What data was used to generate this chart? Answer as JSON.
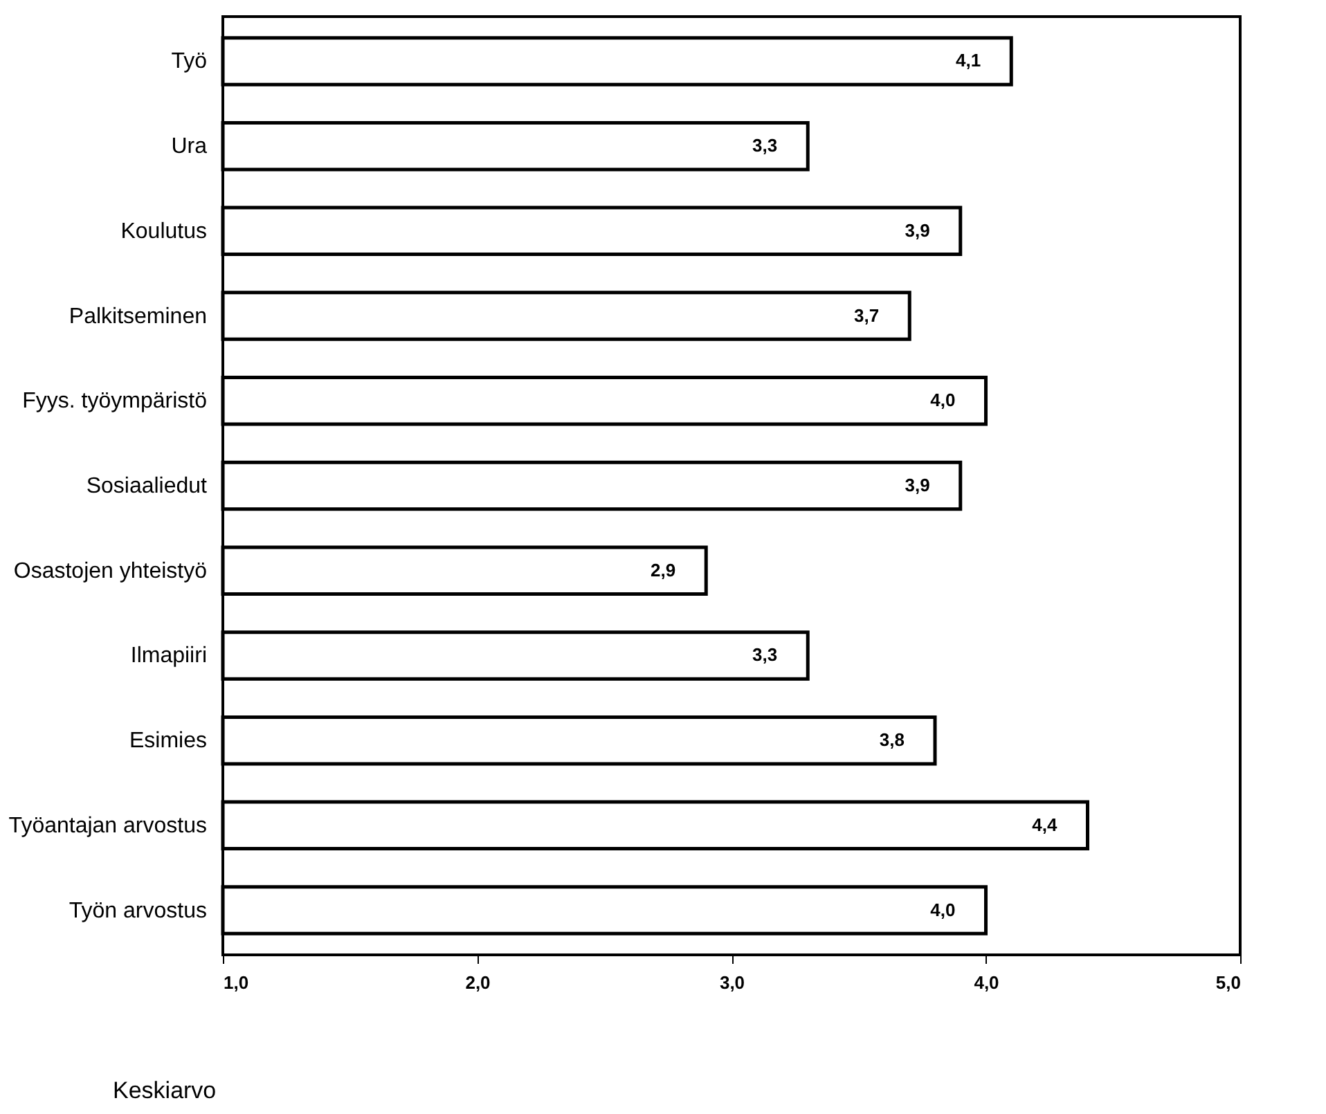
{
  "chart_data": {
    "type": "bar",
    "orientation": "horizontal",
    "xlabel": "Keskiarvo",
    "categories": [
      "Työ",
      "Ura",
      "Koulutus",
      "Palkitseminen",
      "Fyys. työympäristö",
      "Sosiaaliedut",
      "Osastojen yhteistyö",
      "Ilmapiiri",
      "Esimies",
      "Työantajan arvostus",
      "Työn arvostus"
    ],
    "values": [
      4.1,
      3.3,
      3.9,
      3.7,
      4.0,
      3.9,
      2.9,
      3.3,
      3.8,
      4.4,
      4.0
    ],
    "value_labels": [
      "4,1",
      "3,3",
      "3,9",
      "3,7",
      "4,0",
      "3,9",
      "2,9",
      "3,3",
      "3,8",
      "4,4",
      "4,0"
    ],
    "color": "#ffffff",
    "xlim": [
      1,
      5
    ],
    "xticks": [
      {
        "value": 1,
        "label": "1,0"
      },
      {
        "value": 2,
        "label": "2,0"
      },
      {
        "value": 3,
        "label": "3,0"
      },
      {
        "value": 4,
        "label": "4,0"
      },
      {
        "value": 5,
        "label": "5,0"
      }
    ],
    "grid": false
  }
}
